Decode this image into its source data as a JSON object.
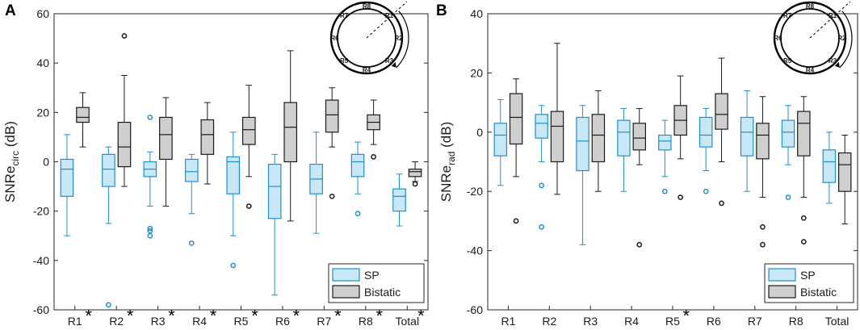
{
  "chart_data": [
    {
      "type": "boxplot",
      "panel": "A",
      "ylabel_main": "SNRe",
      "ylabel_sub": "circ",
      "ylabel_unit": " (dB)",
      "ylim": [
        -60,
        60
      ],
      "yticks": [
        -60,
        -40,
        -20,
        0,
        20,
        40,
        60
      ],
      "categories": [
        "R1",
        "R2",
        "R3",
        "R4",
        "R5",
        "R6",
        "R7",
        "R8",
        "Total"
      ],
      "significant": [
        true,
        true,
        true,
        true,
        true,
        true,
        true,
        true,
        true
      ],
      "significance_marker": "*",
      "legend": [
        "SP",
        "Bistatic"
      ],
      "series": [
        {
          "name": "SP",
          "color": "#1f8fcf",
          "fill": "#c8e8f7",
          "boxes": [
            {
              "min": -30,
              "q1": -14,
              "median": -3,
              "q3": 1,
              "max": 11,
              "outliers": []
            },
            {
              "min": -25,
              "q1": -10,
              "median": -3,
              "q3": 3,
              "max": 6,
              "outliers": [
                -58
              ]
            },
            {
              "min": -18,
              "q1": -6,
              "median": -3,
              "q3": 0,
              "max": 4,
              "outliers": [
                18,
                -27,
                -28,
                -30
              ]
            },
            {
              "min": -21,
              "q1": -8,
              "median": -4,
              "q3": 1,
              "max": 3,
              "outliers": [
                -33
              ]
            },
            {
              "min": -30,
              "q1": -13,
              "median": 0,
              "q3": 2,
              "max": 12,
              "outliers": [
                -42
              ]
            },
            {
              "min": -54,
              "q1": -23,
              "median": -10,
              "q3": -1,
              "max": 3,
              "outliers": []
            },
            {
              "min": -29,
              "q1": -13,
              "median": -7,
              "q3": -1,
              "max": 12,
              "outliers": []
            },
            {
              "min": -13,
              "q1": -6,
              "median": 0,
              "q3": 3,
              "max": 8,
              "outliers": [
                -21
              ]
            },
            {
              "min": -26,
              "q1": -20,
              "median": -14,
              "q3": -11,
              "max": -5,
              "outliers": []
            }
          ]
        },
        {
          "name": "Bistatic",
          "color": "#1a1a1a",
          "fill": "#cfcfcf",
          "boxes": [
            {
              "min": 6,
              "q1": 16,
              "median": 18,
              "q3": 22,
              "max": 28,
              "outliers": []
            },
            {
              "min": -10,
              "q1": -2,
              "median": 6,
              "q3": 16,
              "max": 35,
              "outliers": [
                51
              ]
            },
            {
              "min": -18,
              "q1": 1,
              "median": 11,
              "q3": 18,
              "max": 26,
              "outliers": []
            },
            {
              "min": -9,
              "q1": 3,
              "median": 11,
              "q3": 17,
              "max": 24,
              "outliers": []
            },
            {
              "min": -6,
              "q1": 7,
              "median": 13,
              "q3": 18,
              "max": 31,
              "outliers": [
                -18
              ]
            },
            {
              "min": -24,
              "q1": 0,
              "median": 14,
              "q3": 24,
              "max": 45,
              "outliers": []
            },
            {
              "min": 6,
              "q1": 12,
              "median": 19,
              "q3": 25,
              "max": 30,
              "outliers": [
                -14
              ]
            },
            {
              "min": 7,
              "q1": 13,
              "median": 16,
              "q3": 19,
              "max": 25,
              "outliers": [
                2
              ]
            },
            {
              "min": -8,
              "q1": -6,
              "median": -4,
              "q3": -3,
              "max": 0,
              "outliers": [
                -9
              ]
            }
          ]
        }
      ],
      "inset_labels": [
        "R8",
        "R1",
        "R2",
        "R3",
        "R4",
        "R5",
        "R6",
        "R7"
      ]
    },
    {
      "type": "boxplot",
      "panel": "B",
      "ylabel_main": "SNRe",
      "ylabel_sub": "rad",
      "ylabel_unit": " (dB)",
      "ylim": [
        -60,
        40
      ],
      "yticks": [
        -60,
        -40,
        -20,
        0,
        20,
        40
      ],
      "categories": [
        "R1",
        "R2",
        "R3",
        "R4",
        "R5",
        "R6",
        "R7",
        "R8",
        "Total"
      ],
      "significant": [
        false,
        false,
        false,
        false,
        true,
        false,
        false,
        false,
        false
      ],
      "significance_marker": "*",
      "legend": [
        "SP",
        "Bistatic"
      ],
      "series": [
        {
          "name": "SP",
          "color": "#1f8fcf",
          "fill": "#c8e8f7",
          "boxes": [
            {
              "min": -18,
              "q1": -8,
              "median": -1,
              "q3": 3,
              "max": 11,
              "outliers": []
            },
            {
              "min": -10,
              "q1": -2,
              "median": 3,
              "q3": 6,
              "max": 9,
              "outliers": [
                -18,
                -32
              ]
            },
            {
              "min": -38,
              "q1": -13,
              "median": -3,
              "q3": 5,
              "max": 9,
              "outliers": []
            },
            {
              "min": -20,
              "q1": -8,
              "median": 0,
              "q3": 4,
              "max": 8,
              "outliers": []
            },
            {
              "min": -15,
              "q1": -6,
              "median": -3,
              "q3": -1,
              "max": 4,
              "outliers": [
                -20
              ]
            },
            {
              "min": -13,
              "q1": -5,
              "median": -1,
              "q3": 5,
              "max": 8,
              "outliers": [
                -20
              ]
            },
            {
              "min": -20,
              "q1": -8,
              "median": 0,
              "q3": 5,
              "max": 14,
              "outliers": []
            },
            {
              "min": -11,
              "q1": -5,
              "median": 0,
              "q3": 4,
              "max": 9,
              "outliers": [
                -22
              ]
            },
            {
              "min": -24,
              "q1": -17,
              "median": -10,
              "q3": -6,
              "max": 0,
              "outliers": []
            }
          ]
        },
        {
          "name": "Bistatic",
          "color": "#1a1a1a",
          "fill": "#cfcfcf",
          "boxes": [
            {
              "min": -15,
              "q1": -4,
              "median": 5,
              "q3": 13,
              "max": 18,
              "outliers": [
                -30
              ]
            },
            {
              "min": -21,
              "q1": -10,
              "median": 2,
              "q3": 7,
              "max": 30,
              "outliers": []
            },
            {
              "min": -20,
              "q1": -10,
              "median": -1,
              "q3": 6,
              "max": 14,
              "outliers": []
            },
            {
              "min": -11,
              "q1": -6,
              "median": -2,
              "q3": 3,
              "max": 8,
              "outliers": [
                -38
              ]
            },
            {
              "min": -9,
              "q1": -1,
              "median": 4,
              "q3": 9,
              "max": 19,
              "outliers": [
                -22
              ]
            },
            {
              "min": -10,
              "q1": 1,
              "median": 6,
              "q3": 13,
              "max": 25,
              "outliers": [
                -24
              ]
            },
            {
              "min": -22,
              "q1": -9,
              "median": -1,
              "q3": 3,
              "max": 12,
              "outliers": [
                -32,
                -38
              ]
            },
            {
              "min": -22,
              "q1": -8,
              "median": 3,
              "q3": 7,
              "max": 12,
              "outliers": [
                -29,
                -37
              ]
            },
            {
              "min": -31,
              "q1": -20,
              "median": -11,
              "q3": -7,
              "max": -1,
              "outliers": []
            }
          ]
        }
      ],
      "inset_labels": [
        "R8",
        "R1",
        "R2",
        "R3",
        "R4",
        "R5",
        "R6",
        "R7"
      ]
    }
  ]
}
